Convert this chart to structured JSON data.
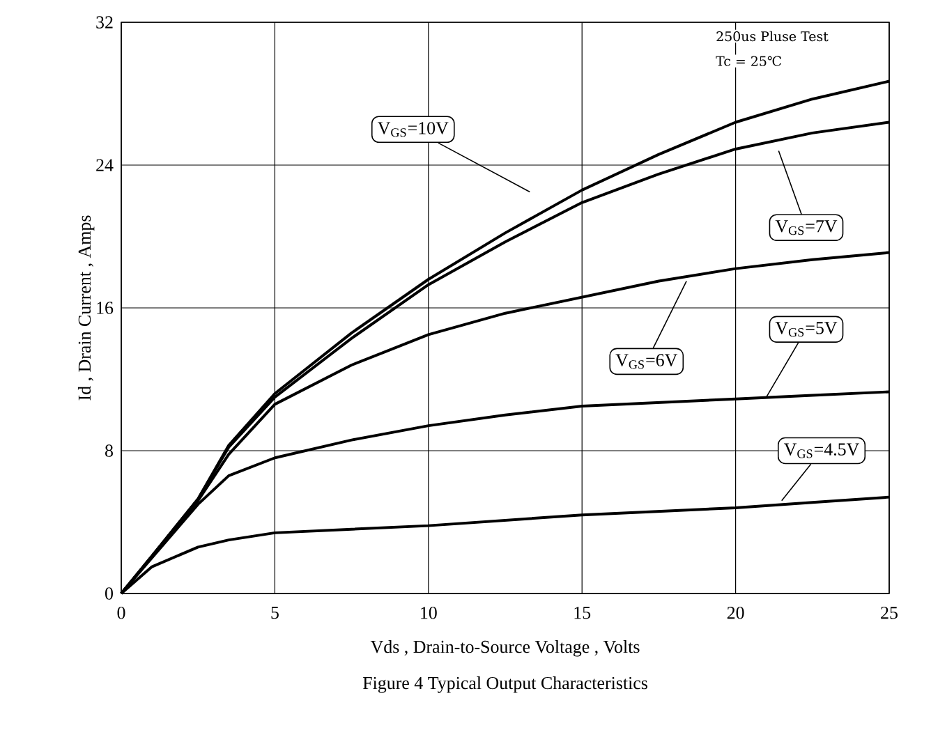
{
  "chart_data": {
    "type": "line",
    "title": "Figure 4 Typical Output Characteristics",
    "xlabel": "Vds , Drain-to-Source Voltage , Volts",
    "ylabel": "Id , Drain Current , Amps",
    "x": [
      0,
      1,
      2.5,
      3.5,
      5,
      7.5,
      10,
      12.5,
      15,
      17.5,
      20,
      22.5,
      25
    ],
    "series": [
      {
        "name": "V$_{GS}$=10V",
        "color": "#000000",
        "values": [
          0,
          2.1,
          5.3,
          8.3,
          11.2,
          14.6,
          17.6,
          20.2,
          22.6,
          24.6,
          26.4,
          27.7,
          28.7
        ]
      },
      {
        "name": "V$_{GS}$=7V",
        "color": "#000000",
        "values": [
          0,
          2.1,
          5.3,
          8.2,
          11.0,
          14.3,
          17.3,
          19.7,
          21.9,
          23.5,
          24.9,
          25.8,
          26.4
        ]
      },
      {
        "name": "V$_{GS}$=6V",
        "color": "#000000",
        "values": [
          0,
          2.1,
          5.2,
          7.8,
          10.6,
          12.8,
          14.5,
          15.7,
          16.6,
          17.5,
          18.2,
          18.7,
          19.1
        ]
      },
      {
        "name": "V$_{GS}$=5V",
        "color": "#000000",
        "values": [
          0,
          2.0,
          5.0,
          6.6,
          7.6,
          8.6,
          9.4,
          10.0,
          10.5,
          10.7,
          10.9,
          11.1,
          11.3
        ]
      },
      {
        "name": "V$_{GS}$=4.5V",
        "color": "#000000",
        "values": [
          0,
          1.5,
          2.6,
          3.0,
          3.4,
          3.6,
          3.8,
          4.1,
          4.4,
          4.6,
          4.8,
          5.1,
          5.4
        ]
      }
    ],
    "xlim": [
      0,
      25
    ],
    "ylim": [
      0,
      32
    ],
    "xticks": [
      0,
      5,
      10,
      15,
      20,
      25
    ],
    "yticks": [
      0,
      8,
      16,
      24,
      32
    ],
    "grid": true,
    "legend": "right",
    "line_style": "solid",
    "marker": "none",
    "annotations": [
      "250us Pluse Test",
      "Tc = 25℃"
    ]
  }
}
